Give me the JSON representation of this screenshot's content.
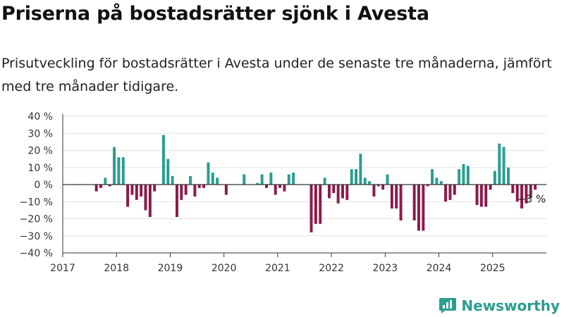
{
  "title": "Priserna på bostadsrätter sjönk i Avesta",
  "subtitle": "Prisutveckling för bostadsrätter i Avesta under de senaste tre månaderna, jämfört med tre månader tidigare.",
  "brand": {
    "name": "Newsworthy",
    "color": "#2a9d8f"
  },
  "chart_data": {
    "type": "bar",
    "x_unit": "month",
    "x_start": "2017-01",
    "xlim": [
      "2017-01",
      "2026-01"
    ],
    "x_tick_labels": [
      "2017",
      "2018",
      "2019",
      "2020",
      "2021",
      "2022",
      "2023",
      "2024",
      "2025"
    ],
    "y_tick_labels": [
      "40 %",
      "30 %",
      "20 %",
      "10 %",
      "0 %",
      "−10 %",
      "−20 %",
      "−30 %",
      "−40 %"
    ],
    "y_tick_values": [
      40,
      30,
      20,
      10,
      0,
      -10,
      -20,
      -30,
      -40
    ],
    "ylim": [
      -40,
      40
    ],
    "grid": true,
    "positive_color": "#2a9d8f",
    "negative_color": "#8b1a4a",
    "annotation": {
      "label": "−3 %",
      "x": "2025-07"
    },
    "series": [
      {
        "values": [
          null,
          null,
          null,
          null,
          null,
          null,
          null,
          -4,
          -2,
          4,
          -1,
          22,
          16,
          16,
          -13,
          -6,
          -9,
          -7,
          -15,
          -19,
          -4,
          null,
          29,
          15,
          5,
          -19,
          -9,
          -6,
          5,
          -7,
          -2,
          -2,
          13,
          7,
          4,
          null,
          -6,
          null,
          null,
          null,
          6,
          null,
          null,
          1,
          6,
          -2,
          7,
          -6,
          -2,
          -4,
          6,
          7,
          null,
          null,
          null,
          -28,
          -23,
          -23,
          4,
          -8,
          -5,
          -11,
          -8,
          -9,
          9,
          9,
          18,
          4,
          2,
          -7,
          -1,
          -3,
          6,
          -14,
          -14,
          -21,
          null,
          null,
          -21,
          -27,
          -27,
          -1,
          9,
          4,
          2,
          -10,
          -9,
          -6,
          9,
          12,
          11,
          null,
          -12,
          -13,
          -13,
          -3,
          8,
          24,
          22,
          10,
          -5,
          -10,
          -14,
          -11,
          -8,
          -3
        ]
      }
    ]
  }
}
